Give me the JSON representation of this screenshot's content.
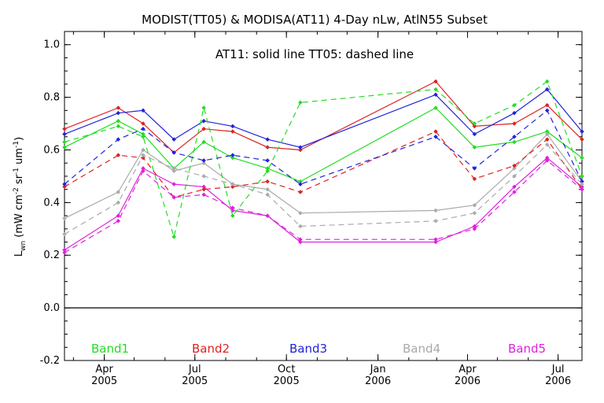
{
  "chart_data": {
    "type": "line",
    "title": "MODIST(TT05) & MODISA(AT11) 4-Day nLw, AtlN55 Subset",
    "annotation": "AT11: solid line    TT05: dashed line",
    "ylabel_main": "L",
    "ylabel_sub": "wn",
    "ylabel_units_a": " (mW cm",
    "ylabel_sup1": "-2",
    "ylabel_units_b": " sr",
    "ylabel_sup2": "-1",
    "ylabel_units_c": " um",
    "ylabel_sup3": "-1",
    "ylabel_units_d": ")",
    "ylim": [
      -0.2,
      1.05
    ],
    "yticks": [
      "-0.2",
      "0.0",
      "0.2",
      "0.4",
      "0.6",
      "0.8",
      "1.0"
    ],
    "xlim": [
      "2005-02-20",
      "2006-07-25"
    ],
    "xticks": [
      {
        "date": "2005-04-01",
        "month": "Apr",
        "year": "2005"
      },
      {
        "date": "2005-07-01",
        "month": "Jul",
        "year": "2005"
      },
      {
        "date": "2005-10-01",
        "month": "Oct",
        "year": "2005"
      },
      {
        "date": "2006-01-01",
        "month": "Jan",
        "year": "2006"
      },
      {
        "date": "2006-04-01",
        "month": "Apr",
        "year": "2006"
      },
      {
        "date": "2006-07-01",
        "month": "Jul",
        "year": "2006"
      }
    ],
    "zero_line": true,
    "legend": [
      {
        "name": "Band1",
        "color": "#22dd22"
      },
      {
        "name": "Band2",
        "color": "#dd2222"
      },
      {
        "name": "Band3",
        "color": "#2222dd"
      },
      {
        "name": "Band4",
        "color": "#aaaaaa"
      },
      {
        "name": "Band5",
        "color": "#dd22dd"
      }
    ],
    "series": [
      {
        "name": "Band1",
        "style": "solid",
        "color": "#22dd22",
        "x": [
          "2005-02-20",
          "2005-04-15",
          "2005-05-10",
          "2005-06-10",
          "2005-07-10",
          "2005-08-08",
          "2005-09-12",
          "2005-10-15",
          "2006-02-28",
          "2006-04-08",
          "2006-05-18",
          "2006-06-20",
          "2006-07-25"
        ],
        "y": [
          0.61,
          0.71,
          0.66,
          0.53,
          0.63,
          0.57,
          0.53,
          0.48,
          0.76,
          0.61,
          0.63,
          0.67,
          0.57
        ]
      },
      {
        "name": "Band2",
        "style": "solid",
        "color": "#dd2222",
        "x": [
          "2005-02-20",
          "2005-04-15",
          "2005-05-10",
          "2005-06-10",
          "2005-07-10",
          "2005-08-08",
          "2005-09-12",
          "2005-10-15",
          "2006-02-28",
          "2006-04-08",
          "2006-05-18",
          "2006-06-20",
          "2006-07-25"
        ],
        "y": [
          0.68,
          0.76,
          0.7,
          0.59,
          0.68,
          0.67,
          0.61,
          0.6,
          0.86,
          0.69,
          0.7,
          0.77,
          0.64
        ]
      },
      {
        "name": "Band3",
        "style": "solid",
        "color": "#2222dd",
        "x": [
          "2005-02-20",
          "2005-04-15",
          "2005-05-10",
          "2005-06-10",
          "2005-07-10",
          "2005-08-08",
          "2005-09-12",
          "2005-10-15",
          "2006-02-28",
          "2006-04-08",
          "2006-05-18",
          "2006-06-20",
          "2006-07-25"
        ],
        "y": [
          0.66,
          0.74,
          0.75,
          0.64,
          0.71,
          0.69,
          0.64,
          0.61,
          0.81,
          0.66,
          0.74,
          0.83,
          0.67
        ]
      },
      {
        "name": "Band4",
        "style": "solid",
        "color": "#aaaaaa",
        "x": [
          "2005-02-20",
          "2005-04-15",
          "2005-05-10",
          "2005-06-10",
          "2005-07-10",
          "2005-08-08",
          "2005-09-12",
          "2005-10-15",
          "2006-02-28",
          "2006-04-08",
          "2006-05-18",
          "2006-06-20",
          "2006-07-25"
        ],
        "y": [
          0.34,
          0.44,
          0.6,
          0.52,
          0.55,
          0.47,
          0.45,
          0.36,
          0.37,
          0.39,
          0.53,
          0.66,
          0.48
        ]
      },
      {
        "name": "Band5",
        "style": "solid",
        "color": "#dd22dd",
        "x": [
          "2005-02-20",
          "2005-04-15",
          "2005-05-10",
          "2005-06-10",
          "2005-07-10",
          "2005-08-08",
          "2005-09-12",
          "2005-10-15",
          "2006-02-28",
          "2006-04-08",
          "2006-05-18",
          "2006-06-20",
          "2006-07-25"
        ],
        "y": [
          0.22,
          0.35,
          0.53,
          0.47,
          0.46,
          0.37,
          0.35,
          0.25,
          0.25,
          0.31,
          0.46,
          0.57,
          0.46
        ]
      },
      {
        "name": "Band1",
        "style": "dashed",
        "color": "#22dd22",
        "x": [
          "2005-02-20",
          "2005-04-15",
          "2005-05-10",
          "2005-06-10",
          "2005-07-10",
          "2005-08-08",
          "2005-09-12",
          "2005-10-15",
          "2006-02-28",
          "2006-04-08",
          "2006-05-18",
          "2006-06-20",
          "2006-07-25"
        ],
        "y": [
          0.63,
          0.69,
          0.65,
          0.27,
          0.76,
          0.35,
          0.52,
          0.78,
          0.83,
          0.7,
          0.77,
          0.86,
          0.5
        ]
      },
      {
        "name": "Band2",
        "style": "dashed",
        "color": "#dd2222",
        "x": [
          "2005-02-20",
          "2005-04-15",
          "2005-05-10",
          "2005-06-10",
          "2005-07-10",
          "2005-08-08",
          "2005-09-12",
          "2005-10-15",
          "2006-02-28",
          "2006-04-08",
          "2006-05-18",
          "2006-06-20",
          "2006-07-25"
        ],
        "y": [
          0.46,
          0.58,
          0.57,
          0.42,
          0.45,
          0.46,
          0.48,
          0.44,
          0.67,
          0.49,
          0.54,
          0.64,
          0.45
        ]
      },
      {
        "name": "Band3",
        "style": "dashed",
        "color": "#2222dd",
        "x": [
          "2005-02-20",
          "2005-04-15",
          "2005-05-10",
          "2005-06-10",
          "2005-07-10",
          "2005-08-08",
          "2005-09-12",
          "2005-10-15",
          "2006-02-28",
          "2006-04-08",
          "2006-05-18",
          "2006-06-20",
          "2006-07-25"
        ],
        "y": [
          0.47,
          0.64,
          0.68,
          0.59,
          0.56,
          0.58,
          0.56,
          0.47,
          0.65,
          0.53,
          0.65,
          0.75,
          0.48
        ]
      },
      {
        "name": "Band4",
        "style": "dashed",
        "color": "#aaaaaa",
        "x": [
          "2005-02-20",
          "2005-04-15",
          "2005-05-10",
          "2005-06-10",
          "2005-07-10",
          "2005-08-08",
          "2005-09-12",
          "2005-10-15",
          "2006-02-28",
          "2006-04-08",
          "2006-05-18",
          "2006-06-20",
          "2006-07-25"
        ],
        "y": [
          0.28,
          0.4,
          0.58,
          0.53,
          0.5,
          0.47,
          0.43,
          0.31,
          0.33,
          0.36,
          0.5,
          0.62,
          0.47
        ]
      },
      {
        "name": "Band5",
        "style": "dashed",
        "color": "#dd22dd",
        "x": [
          "2005-02-20",
          "2005-04-15",
          "2005-05-10",
          "2005-06-10",
          "2005-07-10",
          "2005-08-08",
          "2005-09-12",
          "2005-10-15",
          "2006-02-28",
          "2006-04-08",
          "2006-05-18",
          "2006-06-20",
          "2006-07-25"
        ],
        "y": [
          0.21,
          0.33,
          0.52,
          0.42,
          0.43,
          0.38,
          0.35,
          0.26,
          0.26,
          0.3,
          0.44,
          0.56,
          0.45
        ]
      }
    ]
  }
}
